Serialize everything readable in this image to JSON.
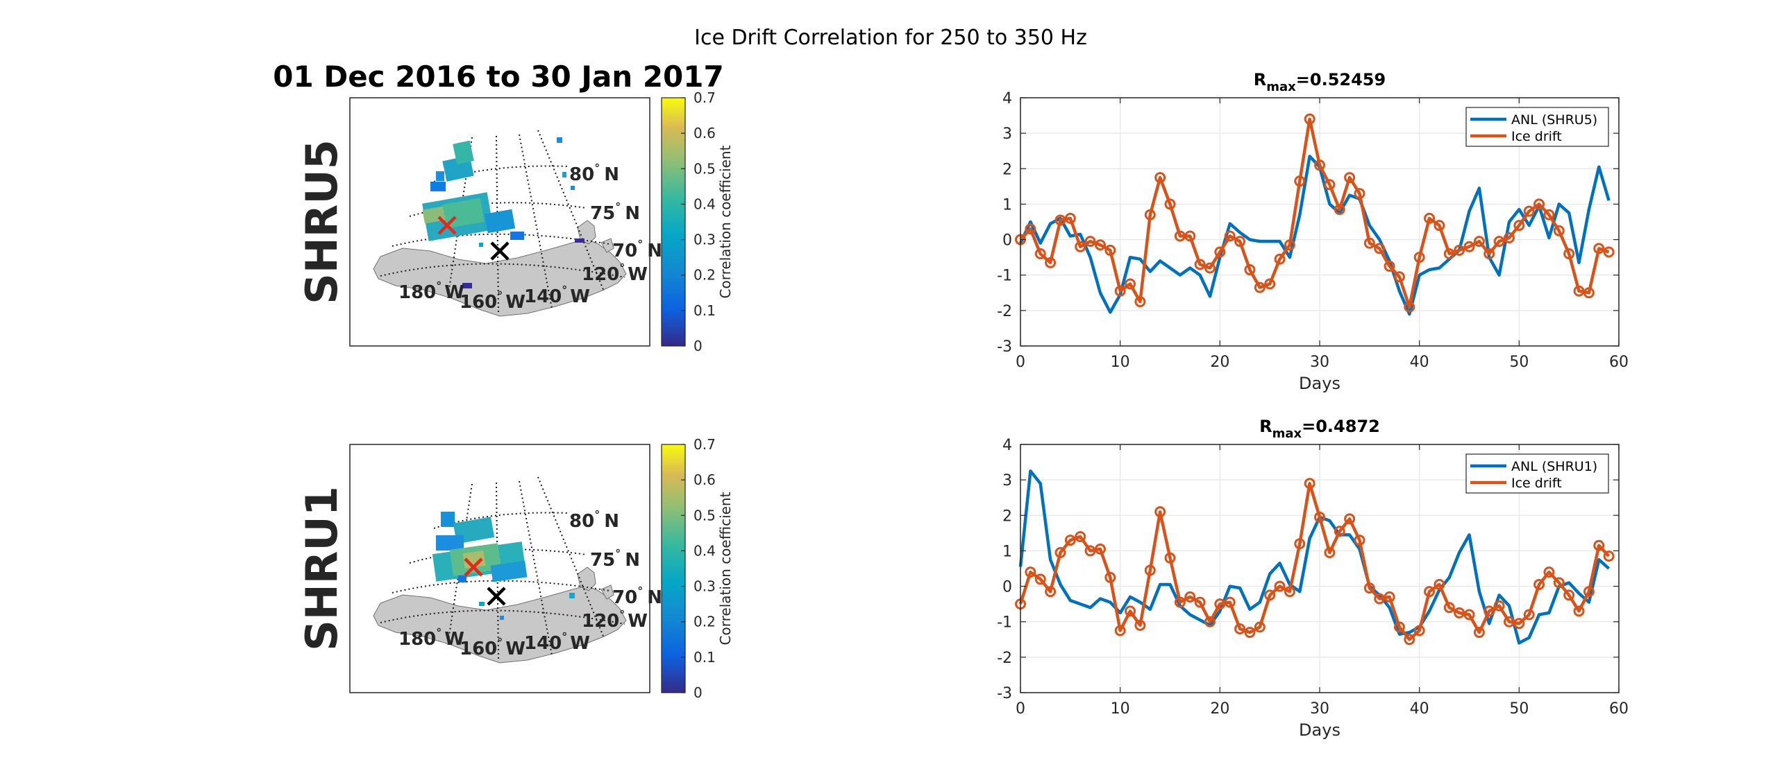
{
  "figure": {
    "suptitle": "Ice Drift Correlation for 250 to 350 Hz",
    "date_range": "01 Dec 2016 to 30 Jan 2017",
    "colorbar": {
      "label": "Correlation coefficient",
      "range": [
        0,
        0.7
      ],
      "ticks": [
        "0",
        "0.1",
        "0.2",
        "0.3",
        "0.4",
        "0.5",
        "0.6",
        "0.7"
      ],
      "colormap": "parula"
    }
  },
  "maps": [
    {
      "station": "SHRU5",
      "lat_labels": [
        "80",
        "75",
        "70"
      ],
      "lat_suffix": "N",
      "lon_labels": [
        "180",
        "160",
        "140",
        "120"
      ],
      "lon_suffix": "W",
      "degree_symbol": "°",
      "markers": [
        {
          "name": "max-correlation",
          "color": "#e8271a"
        },
        {
          "name": "station",
          "color": "#000000"
        }
      ]
    },
    {
      "station": "SHRU1",
      "lat_labels": [
        "80",
        "75",
        "70"
      ],
      "lat_suffix": "N",
      "lon_labels": [
        "180",
        "160",
        "140",
        "120"
      ],
      "lon_suffix": "W",
      "degree_symbol": "°",
      "markers": [
        {
          "name": "max-correlation",
          "color": "#e8271a"
        },
        {
          "name": "station",
          "color": "#000000"
        }
      ]
    }
  ],
  "chart_data": [
    {
      "type": "line",
      "title_prefix": "R",
      "title_sub": "max",
      "title_value": "=0.52459",
      "xlabel": "Days",
      "ylabel": "",
      "xlim": [
        0,
        60
      ],
      "ylim": [
        -3,
        4
      ],
      "xticks": [
        0,
        10,
        20,
        30,
        40,
        50,
        60
      ],
      "yticks": [
        -3,
        -2,
        -1,
        0,
        1,
        2,
        3,
        4
      ],
      "grid": true,
      "legend_position": "top-right",
      "x": [
        0,
        1,
        2,
        3,
        4,
        5,
        6,
        7,
        8,
        9,
        10,
        11,
        12,
        13,
        14,
        15,
        16,
        17,
        18,
        19,
        20,
        21,
        22,
        23,
        24,
        25,
        26,
        27,
        28,
        29,
        30,
        31,
        32,
        33,
        34,
        35,
        36,
        37,
        38,
        39,
        40,
        41,
        42,
        43,
        44,
        45,
        46,
        47,
        48,
        49,
        50,
        51,
        52,
        53,
        54,
        55,
        56,
        57,
        58,
        59
      ],
      "series": [
        {
          "name": "ANL (SHRU5)",
          "color": "#0072bd",
          "marker": false,
          "values": [
            -0.1,
            0.5,
            -0.1,
            0.45,
            0.6,
            0.1,
            0.15,
            -0.5,
            -1.5,
            -2.05,
            -1.55,
            -0.5,
            -0.55,
            -0.9,
            -0.6,
            -0.8,
            -1.0,
            -0.8,
            -1.0,
            -1.6,
            -0.5,
            0.45,
            0.2,
            0.0,
            -0.05,
            -0.05,
            -0.05,
            -0.5,
            0.7,
            2.35,
            2.05,
            1.0,
            0.75,
            1.25,
            1.15,
            0.4,
            0.0,
            -0.6,
            -1.45,
            -2.1,
            -1.0,
            -0.85,
            -0.8,
            -0.55,
            -0.3,
            0.8,
            1.45,
            -0.5,
            -1.0,
            0.5,
            0.85,
            0.4,
            0.95,
            0.05,
            1.0,
            0.75,
            -0.65,
            0.85,
            2.05,
            1.1
          ]
        },
        {
          "name": "Ice drift",
          "color": "#d95319",
          "marker": true,
          "values": [
            0.0,
            0.3,
            -0.4,
            -0.65,
            0.55,
            0.6,
            -0.2,
            -0.05,
            -0.15,
            -0.3,
            -1.45,
            -1.25,
            -1.75,
            0.7,
            1.75,
            1.0,
            0.1,
            0.1,
            -0.7,
            -0.8,
            -0.35,
            0.1,
            -0.05,
            -0.85,
            -1.35,
            -1.25,
            -0.55,
            -0.15,
            1.65,
            3.4,
            2.1,
            1.55,
            0.85,
            1.75,
            1.3,
            -0.1,
            -0.25,
            -0.75,
            -1.05,
            -1.9,
            -0.5,
            0.6,
            0.4,
            -0.4,
            -0.3,
            -0.2,
            -0.05,
            -0.4,
            -0.05,
            0.05,
            0.4,
            0.8,
            1.0,
            0.7,
            0.25,
            -0.4,
            -1.45,
            -1.5,
            -0.25,
            -0.35
          ]
        }
      ]
    },
    {
      "type": "line",
      "title_prefix": "R",
      "title_sub": "max",
      "title_value": "=0.4872",
      "xlabel": "Days",
      "ylabel": "",
      "xlim": [
        0,
        60
      ],
      "ylim": [
        -3,
        4
      ],
      "xticks": [
        0,
        10,
        20,
        30,
        40,
        50,
        60
      ],
      "yticks": [
        -3,
        -2,
        -1,
        0,
        1,
        2,
        3,
        4
      ],
      "grid": true,
      "legend_position": "top-right",
      "x": [
        0,
        1,
        2,
        3,
        4,
        5,
        6,
        7,
        8,
        9,
        10,
        11,
        12,
        13,
        14,
        15,
        16,
        17,
        18,
        19,
        20,
        21,
        22,
        23,
        24,
        25,
        26,
        27,
        28,
        29,
        30,
        31,
        32,
        33,
        34,
        35,
        36,
        37,
        38,
        39,
        40,
        41,
        42,
        43,
        44,
        45,
        46,
        47,
        48,
        49,
        50,
        51,
        52,
        53,
        54,
        55,
        56,
        57,
        58,
        59
      ],
      "series": [
        {
          "name": "ANL (SHRU1)",
          "color": "#0072bd",
          "marker": false,
          "values": [
            0.55,
            3.25,
            2.9,
            0.75,
            0.05,
            -0.4,
            -0.5,
            -0.6,
            -0.35,
            -0.45,
            -0.75,
            -0.3,
            -0.45,
            -0.65,
            0.05,
            0.05,
            -0.55,
            -0.8,
            -0.95,
            -1.1,
            -0.7,
            0.0,
            -0.05,
            -0.65,
            -0.45,
            0.35,
            0.65,
            0.05,
            -0.15,
            1.35,
            1.95,
            1.85,
            1.45,
            1.45,
            1.05,
            0.0,
            -0.25,
            -0.6,
            -1.35,
            -1.3,
            -1.15,
            -0.7,
            -0.1,
            0.25,
            0.95,
            1.45,
            -0.15,
            -1.05,
            -0.25,
            -0.55,
            -1.6,
            -1.45,
            -0.8,
            -0.75,
            0.0,
            0.1,
            -0.2,
            -0.45,
            0.75,
            0.5
          ]
        },
        {
          "name": "Ice drift",
          "color": "#d95319",
          "marker": true,
          "values": [
            -0.5,
            0.4,
            0.2,
            -0.15,
            0.95,
            1.3,
            1.4,
            1.0,
            1.05,
            0.25,
            -1.25,
            -0.7,
            -1.1,
            0.45,
            2.1,
            0.8,
            -0.45,
            -0.3,
            -0.45,
            -1.0,
            -0.5,
            -0.45,
            -1.2,
            -1.3,
            -1.15,
            -0.25,
            0.0,
            -0.15,
            1.2,
            2.9,
            1.95,
            0.95,
            1.55,
            1.9,
            1.3,
            -0.05,
            -0.35,
            -0.3,
            -1.15,
            -1.5,
            -1.25,
            -0.15,
            0.05,
            -0.6,
            -0.75,
            -0.8,
            -1.3,
            -0.7,
            -0.55,
            -1.0,
            -1.05,
            -0.8,
            0.05,
            0.4,
            0.1,
            -0.25,
            -0.7,
            -0.15,
            1.15,
            0.85
          ]
        }
      ]
    }
  ]
}
